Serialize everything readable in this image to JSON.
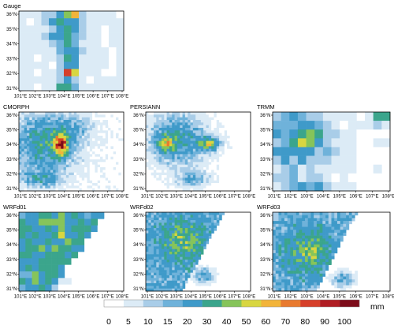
{
  "chart_data": [
    {
      "type": "heatmap",
      "title": "Gauge",
      "xticks": [
        "101°E",
        "102°E",
        "103°E",
        "104°E",
        "105°E",
        "106°E",
        "107°E",
        "108°E"
      ],
      "yticks": [
        "31°N",
        "32°N",
        "33°N",
        "34°N",
        "35°N",
        "36°N"
      ],
      "xlim": [
        101,
        108
      ],
      "ylim": [
        31,
        36
      ]
    },
    {
      "type": "heatmap",
      "title": "CMORPH",
      "xticks": [
        "101°E",
        "102°E",
        "103°E",
        "104°E",
        "105°E",
        "106°E",
        "107°E",
        "108°E"
      ],
      "yticks": [
        "31°N",
        "32°N",
        "33°N",
        "34°N",
        "35°N",
        "36°N"
      ],
      "xlim": [
        101,
        108
      ],
      "ylim": [
        31,
        36
      ]
    },
    {
      "type": "heatmap",
      "title": "PERSIANN",
      "xticks": [
        "101°E",
        "102°E",
        "103°E",
        "104°E",
        "105°E",
        "106°E",
        "107°E",
        "108°E"
      ],
      "yticks": [
        "31°N",
        "32°N",
        "33°N",
        "34°N",
        "35°N",
        "36°N"
      ],
      "xlim": [
        101,
        108
      ],
      "ylim": [
        31,
        36
      ]
    },
    {
      "type": "heatmap",
      "title": "TRMM",
      "xticks": [
        "101°E",
        "102°E",
        "103°E",
        "104°E",
        "105°E",
        "106°E",
        "107°E",
        "108°E"
      ],
      "yticks": [
        "31°N",
        "32°N",
        "33°N",
        "34°N",
        "35°N",
        "36°N"
      ],
      "xlim": [
        101,
        108
      ],
      "ylim": [
        31,
        36
      ]
    },
    {
      "type": "heatmap",
      "title": "WRFd01",
      "xticks": [
        "101°E",
        "102°E",
        "103°E",
        "104°E",
        "105°E",
        "106°E",
        "107°E",
        "108°E"
      ],
      "yticks": [
        "31°N",
        "32°N",
        "33°N",
        "34°N",
        "35°N",
        "36°N"
      ],
      "xlim": [
        101,
        108
      ],
      "ylim": [
        31,
        36
      ]
    },
    {
      "type": "heatmap",
      "title": "WRFd02",
      "xticks": [
        "101°E",
        "102°E",
        "103°E",
        "104°E",
        "105°E",
        "106°E",
        "107°E",
        "108°E"
      ],
      "yticks": [
        "31°N",
        "32°N",
        "33°N",
        "34°N",
        "35°N",
        "36°N"
      ],
      "xlim": [
        101,
        108
      ],
      "ylim": [
        31,
        36
      ]
    },
    {
      "type": "heatmap",
      "title": "WRFd03",
      "xticks": [
        "101°E",
        "102°E",
        "103°E",
        "104°E",
        "105°E",
        "106°E",
        "107°E",
        "108°E"
      ],
      "yticks": [
        "31°N",
        "32°N",
        "33°N",
        "34°N",
        "35°N",
        "36°N"
      ],
      "xlim": [
        101,
        108
      ],
      "ylim": [
        31,
        36
      ]
    }
  ],
  "colorbar": {
    "unit": "mm",
    "ticks": [
      "0",
      "5",
      "10",
      "15",
      "20",
      "30",
      "40",
      "50",
      "60",
      "70",
      "80",
      "90",
      "100"
    ],
    "colors": [
      "#ffffff",
      "#dcebf6",
      "#a9cde8",
      "#6fb2da",
      "#3f9ac9",
      "#3ba58c",
      "#86c45a",
      "#d8d641",
      "#f2b43a",
      "#e87a2f",
      "#d6402a",
      "#b01e24",
      "#7d0c1a"
    ]
  }
}
